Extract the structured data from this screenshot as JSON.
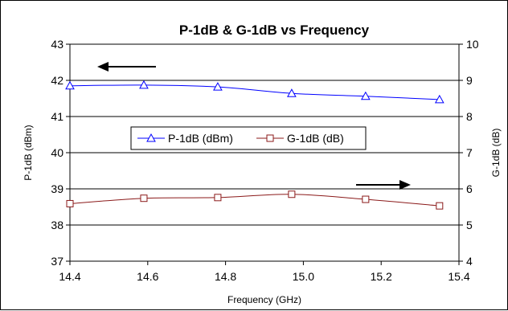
{
  "chart_data": {
    "type": "line",
    "title": "P-1dB & G-1dB vs Frequency",
    "xlabel": "Frequency (GHz)",
    "ylabel": "P-1dB (dBm)",
    "y2label": "G-1dB (dB)",
    "xlim": [
      14.4,
      15.4
    ],
    "xticks": [
      14.4,
      14.6,
      14.8,
      15.0,
      15.2,
      15.4
    ],
    "xtick_labels": [
      "14.4",
      "14.6",
      "14.8",
      "15.0",
      "15.2",
      "15.4"
    ],
    "ylim": [
      37,
      43
    ],
    "yticks": [
      37,
      38,
      39,
      40,
      41,
      42,
      43
    ],
    "y2lim": [
      4,
      10
    ],
    "y2ticks": [
      4,
      5,
      6,
      7,
      8,
      9,
      10
    ],
    "grid": "horizontal",
    "legend": "center",
    "series": [
      {
        "name": "P-1dB (dBm)",
        "axis": "left",
        "color": "#0000ff",
        "marker": "triangle",
        "x": [
          14.4,
          14.59,
          14.78,
          14.97,
          15.16,
          15.35
        ],
        "values": [
          41.85,
          41.87,
          41.82,
          41.64,
          41.56,
          41.47
        ]
      },
      {
        "name": "G-1dB (dB)",
        "axis": "right",
        "color": "#8b1a1a",
        "marker": "square",
        "x": [
          14.4,
          14.59,
          14.78,
          14.97,
          15.16,
          15.35
        ],
        "values": [
          5.59,
          5.74,
          5.76,
          5.85,
          5.71,
          5.53
        ]
      }
    ],
    "annotations": [
      {
        "type": "arrow",
        "direction": "left",
        "points_to": "left-axis"
      },
      {
        "type": "arrow",
        "direction": "right",
        "points_to": "right-axis"
      }
    ]
  }
}
